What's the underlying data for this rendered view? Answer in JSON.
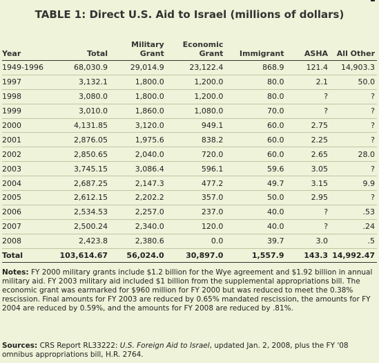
{
  "title": "TABLE 1: Direct U.S. Aid to Israel (millions of dollars)",
  "headers": {
    "year": "Year",
    "total": "Total",
    "military": [
      "Military",
      "Grant"
    ],
    "economic": [
      "Economic",
      "Grant"
    ],
    "immigrant": "Immigrant",
    "asha": "ASHA",
    "all_other": "All Other"
  },
  "rows": [
    [
      "1949-1996",
      "68,030.9",
      "29,014.9",
      "23,122.4",
      "868.9",
      "121.4",
      "14,903.3"
    ],
    [
      "1997",
      "3,132.1",
      "1,800.0",
      "1,200.0",
      "80.0",
      "2.1",
      "50.0"
    ],
    [
      "1998",
      "3,080.0",
      "1,800.0",
      "1,200.0",
      "80.0",
      "?",
      "?"
    ],
    [
      "1999",
      "3,010.0",
      "1,860.0",
      "1,080.0",
      "70.0",
      "?",
      "?"
    ],
    [
      "2000",
      "4,131.85",
      "3,120.0",
      "949.1",
      "60.0",
      "2.75",
      "?"
    ],
    [
      "2001",
      "2,876.05",
      "1,975.6",
      "838.2",
      "60.0",
      "2.25",
      "?"
    ],
    [
      "2002",
      "2,850.65",
      "2,040.0",
      "720.0",
      "60.0",
      "2.65",
      "28.0"
    ],
    [
      "2003",
      "3,745.15",
      "3,086.4",
      "596.1",
      "59.6",
      "3.05",
      "?"
    ],
    [
      "2004",
      "2,687.25",
      "2,147.3",
      "477.2",
      "49.7",
      "3.15",
      "9.9"
    ],
    [
      "2005",
      "2,612.15",
      "2,202.2",
      "357.0",
      "50.0",
      "2.95",
      "?"
    ],
    [
      "2006",
      "2,534.53",
      "2,257.0",
      "237.0",
      "40.0",
      "?",
      ".53"
    ],
    [
      "2007",
      "2,500.24",
      "2,340.0",
      "120.0",
      "40.0",
      "?",
      ".24"
    ],
    [
      "2008",
      "2,423.8",
      "2,380.6",
      "0.0",
      "39.7",
      "3.0",
      ".5"
    ]
  ],
  "total_row": [
    "Total",
    "103,614.67",
    "56,024.0",
    "30,897.0",
    "1,557.9",
    "143.3",
    "14,992.47"
  ],
  "notes": {
    "label": "Notes:",
    "text": "FY 2000 military grants include $1.2 billion for the Wye agreement and $1.92 billion in annual military aid. FY 2003 military aid included $1 billion from the supplemental appropriations bill. The economic grant was earmarked for $960 million for FY 2000 but was reduced to meet the 0.38% rescission. Final amounts for FY 2003 are reduced by 0.65% mandated rescission, the amounts for FY 2004 are reduced by 0.59%, and the amounts for FY 2008 are reduced by .81%."
  },
  "sources": {
    "label": "Sources:",
    "prefix": "CRS Report RL33222: ",
    "report_title": "U.S. Foreign Aid to Israel",
    "suffix": ", updated Jan. 2, 2008, plus the FY '08 omnibus appropriations bill, H.R. 2764."
  }
}
